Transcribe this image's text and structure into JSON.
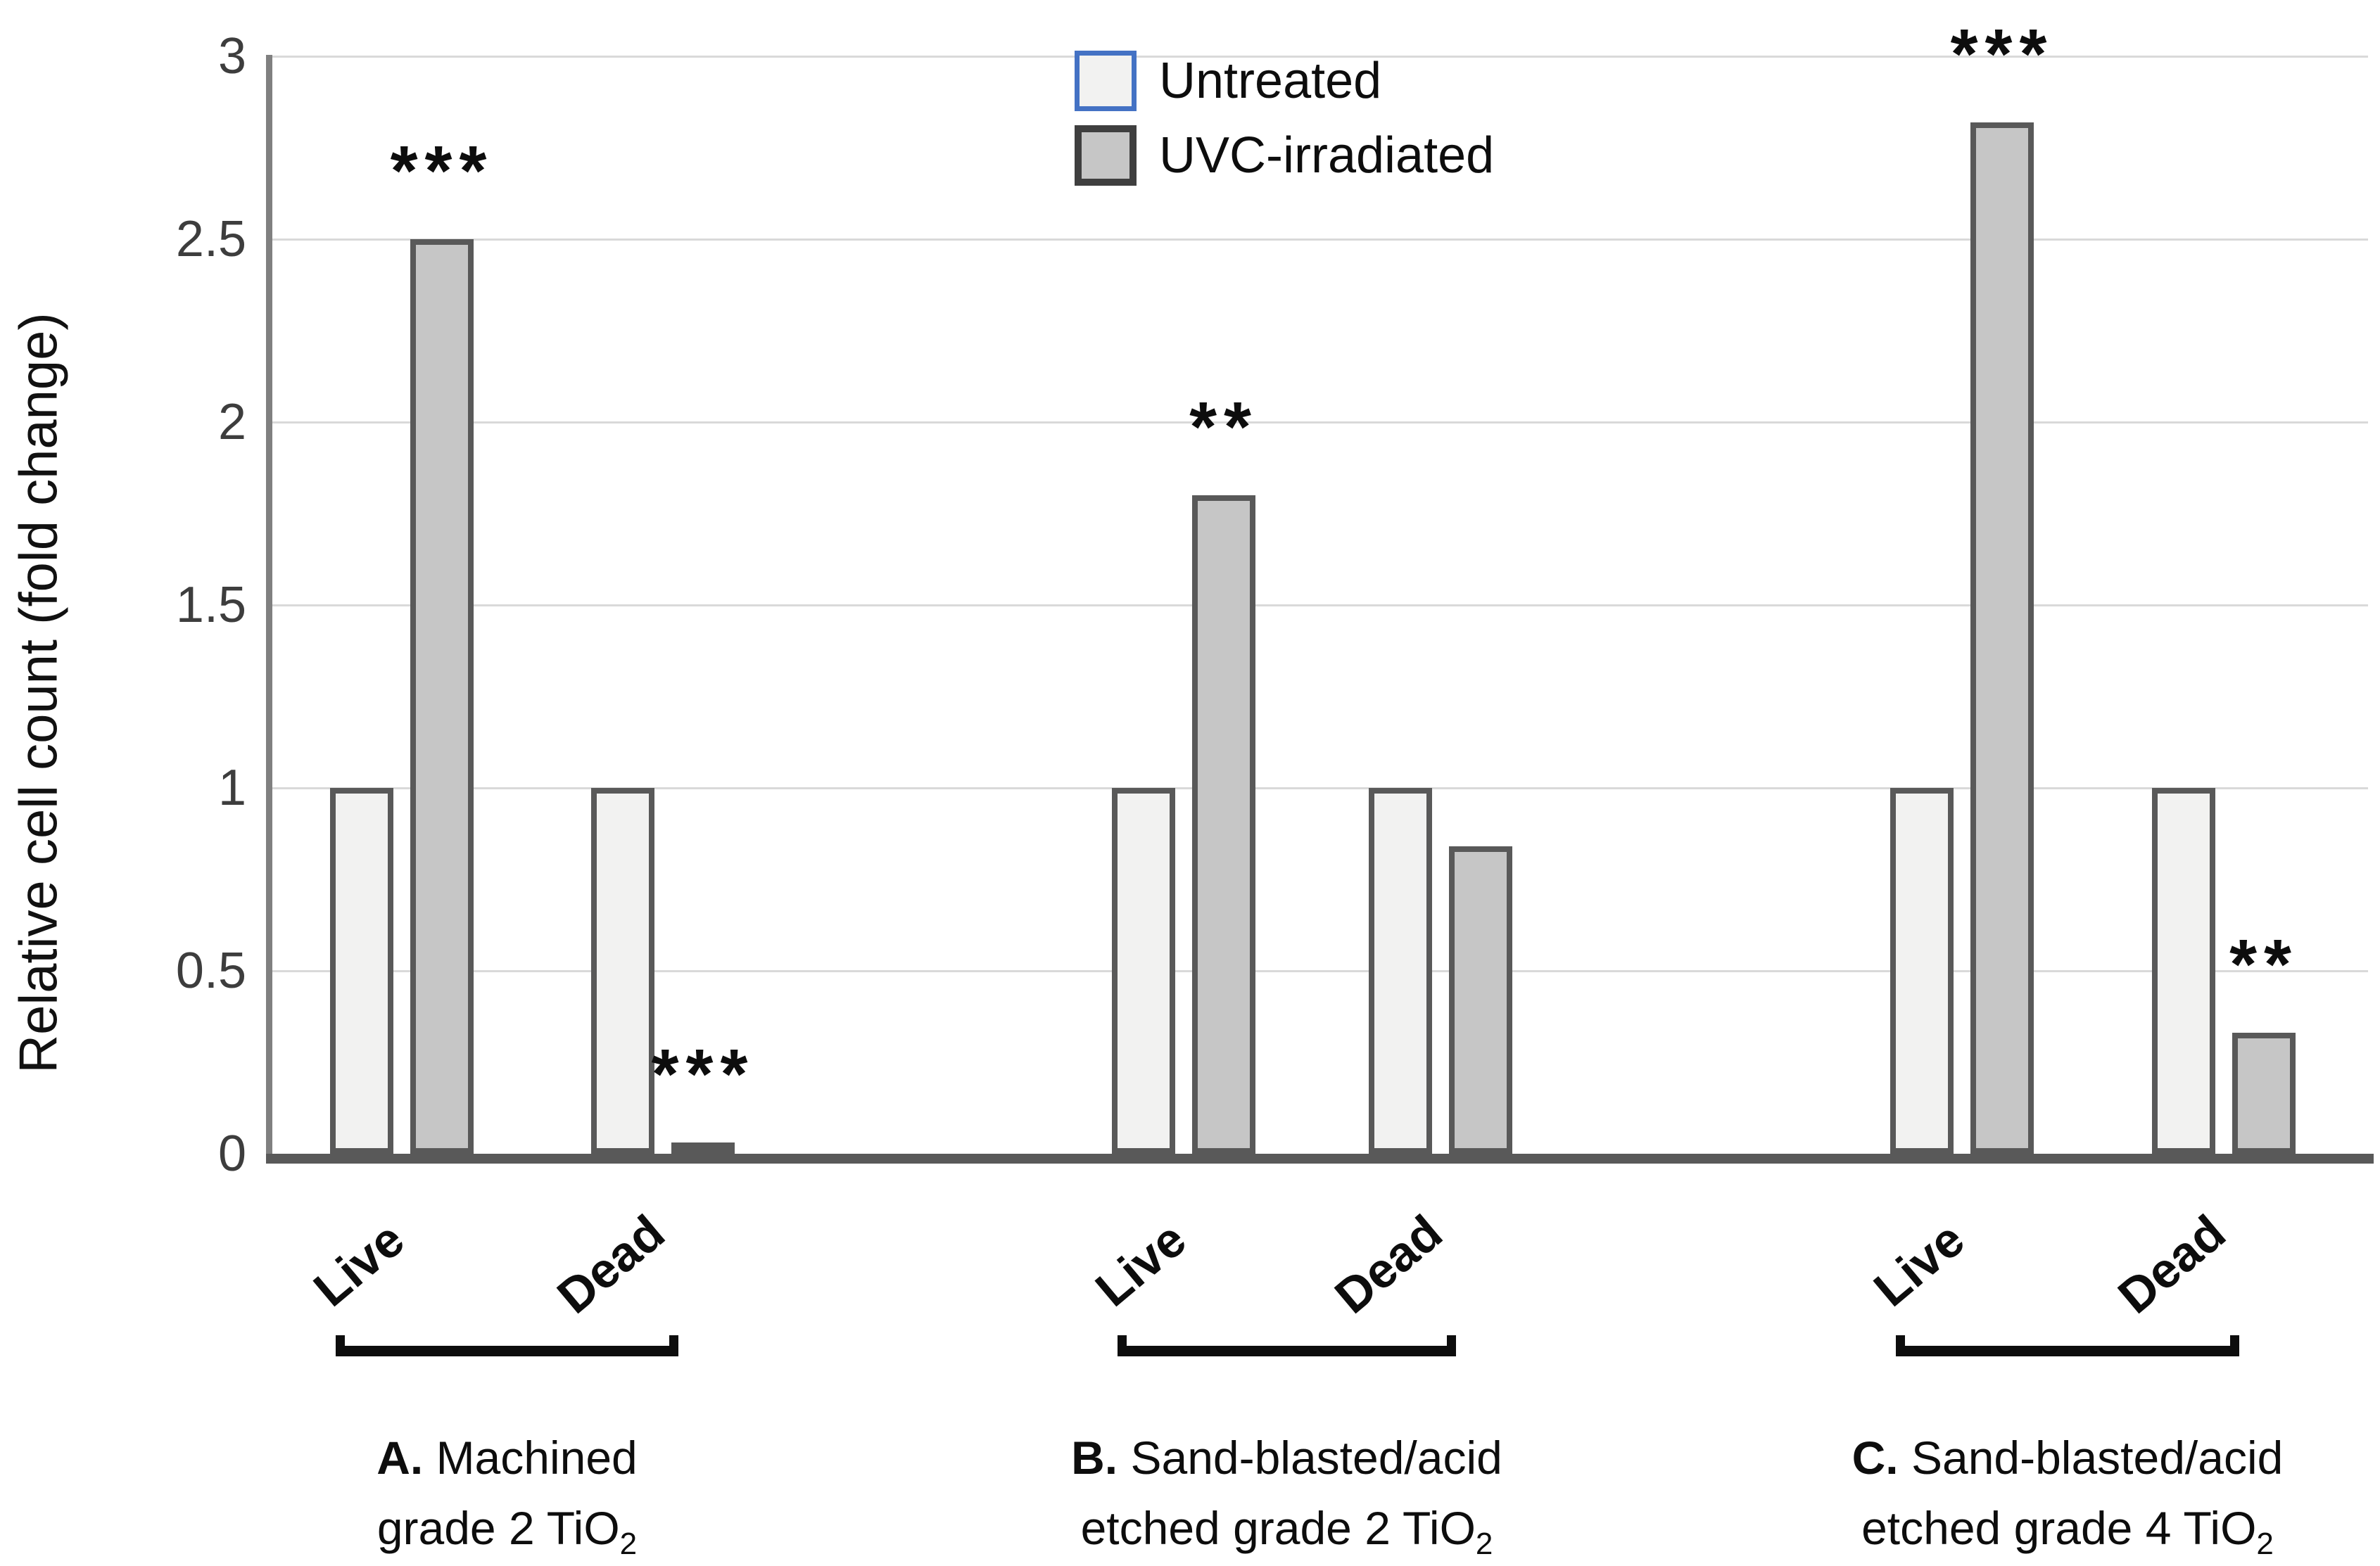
{
  "colors": {
    "background": "#ffffff",
    "gridline": "#d9d9d9",
    "y_axis_line": "#808080",
    "baseline": "#595959",
    "bar_border": "#595959",
    "untreated_fill": "#f2f2f1",
    "uvc_fill": "#c6c6c6",
    "legend_untreated_border": "#4472c4",
    "legend_uvc_border": "#3f3f3f",
    "text": "#0d0d0d",
    "tick_text": "#3d3d3d"
  },
  "legend": [
    {
      "label": "Untreated",
      "fill": "#f2f2f1",
      "border": "#4472c4"
    },
    {
      "label": "UVC-irradiated",
      "fill": "#c6c6c6",
      "border": "#3f3f3f"
    }
  ],
  "chart_data": {
    "type": "bar",
    "title": "",
    "xlabel": "",
    "ylabel": "Relative cell count (fold change)",
    "ylim": [
      0,
      3
    ],
    "ytick_values": [
      0,
      0.5,
      1,
      1.5,
      2,
      2.5,
      3
    ],
    "ytick_labels": [
      "0",
      "0.5",
      "1",
      "1.5",
      "2",
      "2.5",
      "3"
    ],
    "grid": true,
    "legend_position": "top-center",
    "series": [
      "Untreated",
      "UVC-irradiated"
    ],
    "groups": [
      {
        "id": "A",
        "caption_prefix": "A.",
        "caption_lines": [
          "Machined",
          "grade 2 TiO"
        ],
        "caption_subscript": "2",
        "pairs": [
          {
            "category": "Live",
            "untreated": 1.0,
            "uvc_irradiated": 2.5,
            "significance": "***"
          },
          {
            "category": "Dead",
            "untreated": 1.0,
            "uvc_irradiated": 0.03,
            "significance": "***"
          }
        ]
      },
      {
        "id": "B",
        "caption_prefix": "B.",
        "caption_lines": [
          "Sand-blasted/acid",
          "etched grade 2 TiO"
        ],
        "caption_subscript": "2",
        "pairs": [
          {
            "category": "Live",
            "untreated": 1.0,
            "uvc_irradiated": 1.8,
            "significance": "**"
          },
          {
            "category": "Dead",
            "untreated": 1.0,
            "uvc_irradiated": 0.84,
            "significance": ""
          }
        ]
      },
      {
        "id": "C",
        "caption_prefix": "C.",
        "caption_lines": [
          "Sand-blasted/acid",
          "etched grade 4 TiO"
        ],
        "caption_subscript": "2",
        "pairs": [
          {
            "category": "Live",
            "untreated": 1.0,
            "uvc_irradiated": 2.82,
            "significance": "***"
          },
          {
            "category": "Dead",
            "untreated": 1.0,
            "uvc_irradiated": 0.33,
            "significance": "**"
          }
        ]
      }
    ]
  }
}
